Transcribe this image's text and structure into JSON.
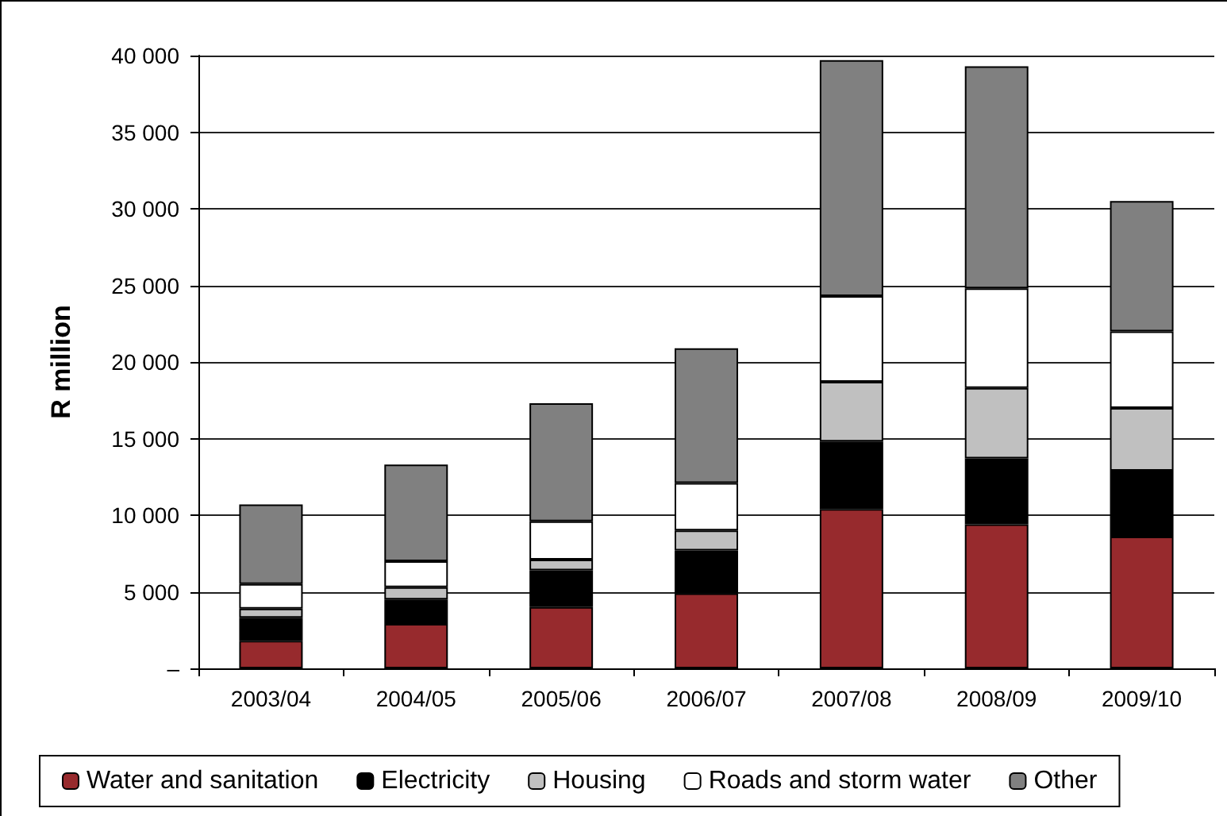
{
  "chart_data": {
    "type": "bar",
    "stacked": true,
    "ylabel": "R million",
    "categories": [
      "2003/04",
      "2004/05",
      "2005/06",
      "2006/07",
      "2007/08",
      "2008/09",
      "2009/10"
    ],
    "series": [
      {
        "name": "Water and sanitation",
        "color": "#972a2d",
        "values": [
          1800,
          2900,
          4000,
          4900,
          10400,
          9400,
          8600
        ]
      },
      {
        "name": "Electricity",
        "color": "#000000",
        "values": [
          1500,
          1600,
          2400,
          2800,
          4400,
          4300,
          4300
        ]
      },
      {
        "name": "Housing",
        "color": "#c0c0c0",
        "values": [
          600,
          800,
          700,
          1300,
          3900,
          4600,
          4100
        ]
      },
      {
        "name": "Roads and storm water",
        "color": "#ffffff",
        "values": [
          1600,
          1700,
          2500,
          3100,
          5600,
          6500,
          5000
        ]
      },
      {
        "name": "Other",
        "color": "#808080",
        "values": [
          5200,
          6300,
          7700,
          8800,
          15400,
          14500,
          8500
        ]
      }
    ],
    "ylim": [
      0,
      40000
    ],
    "yticks": [
      {
        "value": 0,
        "label": "–"
      },
      {
        "value": 5000,
        "label": "5 000"
      },
      {
        "value": 10000,
        "label": "10 000"
      },
      {
        "value": 15000,
        "label": "15 000"
      },
      {
        "value": 20000,
        "label": "20 000"
      },
      {
        "value": 25000,
        "label": "25 000"
      },
      {
        "value": 30000,
        "label": "30 000"
      },
      {
        "value": 35000,
        "label": "35 000"
      },
      {
        "value": 40000,
        "label": "40 000"
      }
    ],
    "grid": "y",
    "legend": "bottom"
  }
}
